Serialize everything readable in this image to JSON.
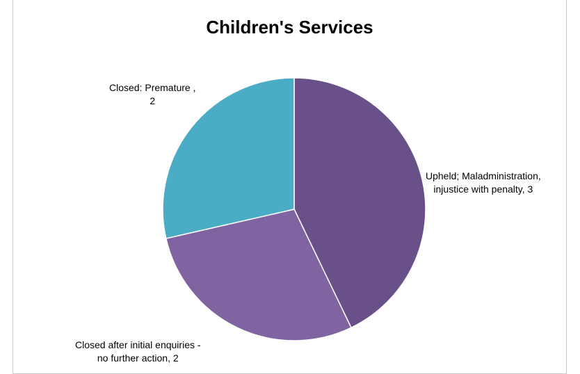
{
  "chart_data": {
    "type": "pie",
    "title": "Children's Services",
    "slices": [
      {
        "label": "Upheld; Maladministration, injustice with penalty",
        "value": 3,
        "color": "#6a5088"
      },
      {
        "label": "Closed after initial enquiries - no further action",
        "value": 2,
        "color": "#8064a2"
      },
      {
        "label": "Closed: Premature",
        "value": 2,
        "color": "#4bacc6"
      }
    ],
    "data_labels": [
      {
        "line1": "Upheld; Maladministration,",
        "line2": "injustice with penalty, 3"
      },
      {
        "line1": "Closed after initial enquiries -",
        "line2": "no further action, 2"
      },
      {
        "line1": "Closed: Premature ,",
        "line2": "2"
      }
    ],
    "legend": "none"
  }
}
